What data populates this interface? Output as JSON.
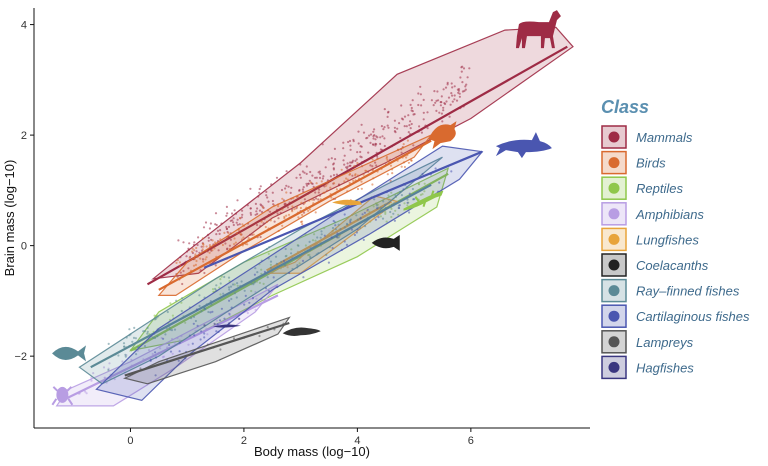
{
  "chart_data": {
    "type": "scatter",
    "xlabel": "Body mass (log−10)",
    "ylabel": "Brain mass (log−10)",
    "xlim": [
      -1.7,
      8.1
    ],
    "ylim": [
      -3.3,
      4.3
    ],
    "x_ticks": [
      0,
      2,
      4,
      6
    ],
    "y_ticks": [
      -2,
      0,
      2,
      4
    ],
    "grid": false,
    "legend": {
      "title": "Class",
      "placement": "right",
      "title_color": "#5a8fb0",
      "label_color": "#3e6a8c"
    },
    "series": [
      {
        "name": "Mammals",
        "color": "#9e2b45",
        "icon": "horse-icon",
        "hull": [
          [
            0.4,
            -0.6
          ],
          [
            1.0,
            -0.1
          ],
          [
            3.0,
            1.5
          ],
          [
            4.7,
            3.1
          ],
          [
            6.6,
            3.9
          ],
          [
            7.5,
            3.95
          ],
          [
            7.8,
            3.6
          ],
          [
            6.0,
            2.3
          ],
          [
            4.5,
            1.5
          ],
          [
            2.5,
            0.5
          ],
          [
            1.2,
            -0.5
          ]
        ],
        "trend": [
          [
            0.3,
            -0.7
          ],
          [
            7.7,
            3.6
          ]
        ],
        "cluster": {
          "x": [
            0.8,
            6.0
          ],
          "center": [
            [
              0.8,
              -0.3
            ],
            [
              6.0,
              2.9
            ]
          ],
          "spread": 0.45,
          "n": 420
        }
      },
      {
        "name": "Birds",
        "color": "#d96a2f",
        "icon": "bird-icon",
        "hull": [
          [
            0.5,
            -0.9
          ],
          [
            1.0,
            -0.3
          ],
          [
            2.5,
            0.7
          ],
          [
            4.0,
            1.4
          ],
          [
            5.3,
            2.0
          ],
          [
            5.0,
            1.6
          ],
          [
            3.5,
            0.8
          ],
          [
            2.0,
            -0.1
          ],
          [
            0.8,
            -0.9
          ]
        ],
        "trend": [
          [
            0.5,
            -0.8
          ],
          [
            5.3,
            1.9
          ]
        ],
        "cluster": {
          "x": [
            0.8,
            5.0
          ],
          "center": [
            [
              0.8,
              -0.4
            ],
            [
              5.0,
              1.7
            ]
          ],
          "spread": 0.3,
          "n": 180
        }
      },
      {
        "name": "Reptiles",
        "color": "#8fc74b",
        "icon": "lizard-icon",
        "hull": [
          [
            0.0,
            -1.9
          ],
          [
            0.5,
            -1.2
          ],
          [
            2.0,
            -0.3
          ],
          [
            3.8,
            0.5
          ],
          [
            5.6,
            1.4
          ],
          [
            5.4,
            0.7
          ],
          [
            4.0,
            -0.2
          ],
          [
            2.5,
            -0.9
          ],
          [
            1.0,
            -1.7
          ]
        ],
        "trend": [
          [
            0.0,
            -1.9
          ],
          [
            5.6,
            1.3
          ]
        ],
        "cluster": {
          "x": [
            0.3,
            5.3
          ],
          "center": [
            [
              0.3,
              -1.6
            ],
            [
              5.3,
              1.1
            ]
          ],
          "spread": 0.3,
          "n": 110
        }
      },
      {
        "name": "Amphibians",
        "color": "#b89de3",
        "icon": "frog-icon",
        "hull": [
          [
            -1.3,
            -2.9
          ],
          [
            -1.1,
            -2.6
          ],
          [
            0.0,
            -2.1
          ],
          [
            1.5,
            -1.3
          ],
          [
            2.6,
            -0.7
          ],
          [
            2.2,
            -1.2
          ],
          [
            0.8,
            -2.2
          ],
          [
            -0.3,
            -2.9
          ]
        ],
        "trend": [
          [
            -1.2,
            -2.8
          ],
          [
            2.6,
            -0.9
          ]
        ],
        "cluster": {
          "x": [
            -1.0,
            2.4
          ],
          "center": [
            [
              -1.0,
              -2.6
            ],
            [
              2.4,
              -1.0
            ]
          ],
          "spread": 0.25,
          "n": 60
        }
      },
      {
        "name": "Lungfishes",
        "color": "#e8a43a",
        "icon": "lungfish-icon",
        "hull": [
          [
            2.4,
            -0.5
          ],
          [
            2.9,
            -0.3
          ],
          [
            4.3,
            0.9
          ],
          [
            4.7,
            0.8
          ],
          [
            3.0,
            -0.5
          ]
        ],
        "trend": [
          [
            2.4,
            -0.45
          ],
          [
            4.6,
            0.8
          ]
        ],
        "cluster": {
          "x": [
            2.6,
            4.5
          ],
          "center": [
            [
              2.6,
              -0.4
            ],
            [
              4.5,
              0.75
            ]
          ],
          "spread": 0.1,
          "n": 10
        }
      },
      {
        "name": "Coelacanths",
        "color": "#222222",
        "icon": "coelacanth-icon",
        "hull": [],
        "trend": [],
        "cluster": {
          "x": [
            4.4,
            4.6
          ],
          "center": [
            [
              4.4,
              0.05
            ],
            [
              4.6,
              0.1
            ]
          ],
          "spread": 0.04,
          "n": 3
        }
      },
      {
        "name": "Ray–finned fishes",
        "color": "#5b8a96",
        "icon": "ray-finned-fish-icon",
        "hull": [
          [
            -0.9,
            -2.2
          ],
          [
            0.0,
            -1.6
          ],
          [
            1.5,
            -0.6
          ],
          [
            3.0,
            0.3
          ],
          [
            4.5,
            1.1
          ],
          [
            5.5,
            1.6
          ],
          [
            4.0,
            0.3
          ],
          [
            2.0,
            -1.0
          ],
          [
            0.5,
            -2.0
          ],
          [
            -0.5,
            -2.5
          ]
        ],
        "trend": [
          [
            -0.7,
            -2.2
          ],
          [
            5.3,
            1.1
          ]
        ],
        "cluster": {
          "x": [
            -0.4,
            5.0
          ],
          "center": [
            [
              -0.4,
              -2.0
            ],
            [
              5.0,
              1.0
            ]
          ],
          "spread": 0.3,
          "n": 160
        }
      },
      {
        "name": "Cartilaginous fishes",
        "color": "#4a56b0",
        "icon": "shark-icon",
        "hull": [
          [
            -0.6,
            -2.6
          ],
          [
            0.5,
            -1.5
          ],
          [
            2.0,
            -0.5
          ],
          [
            3.5,
            0.5
          ],
          [
            5.5,
            1.8
          ],
          [
            6.2,
            1.7
          ],
          [
            5.8,
            1.2
          ],
          [
            4.2,
            0.2
          ],
          [
            2.5,
            -0.8
          ],
          [
            1.0,
            -2.0
          ],
          [
            0.2,
            -2.8
          ]
        ],
        "trend": [
          [
            1.3,
            -0.4
          ],
          [
            6.2,
            1.7
          ]
        ],
        "cluster": {
          "x": [
            0.3,
            5.8
          ],
          "center": [
            [
              0.3,
              -2.1
            ],
            [
              5.8,
              1.5
            ]
          ],
          "spread": 0.35,
          "n": 90
        }
      },
      {
        "name": "Lampreys",
        "color": "#555555",
        "icon": "lamprey-icon",
        "hull": [
          [
            -0.1,
            -2.4
          ],
          [
            0.5,
            -2.1
          ],
          [
            2.8,
            -1.3
          ],
          [
            2.6,
            -1.6
          ],
          [
            1.5,
            -2.1
          ],
          [
            0.3,
            -2.5
          ]
        ],
        "trend": [
          [
            -0.1,
            -2.35
          ],
          [
            2.8,
            -1.4
          ]
        ],
        "cluster": {
          "x": [
            0.0,
            2.7
          ],
          "center": [
            [
              0.0,
              -2.3
            ],
            [
              2.7,
              -1.45
            ]
          ],
          "spread": 0.1,
          "n": 12
        }
      },
      {
        "name": "Hagfishes",
        "color": "#3a3680",
        "icon": "hagfish-icon",
        "hull": [],
        "trend": [],
        "cluster": {
          "x": [
            1.3,
            2.0
          ],
          "center": [
            [
              1.3,
              -1.45
            ],
            [
              2.0,
              -1.35
            ]
          ],
          "spread": 0.04,
          "n": 4
        }
      }
    ]
  }
}
